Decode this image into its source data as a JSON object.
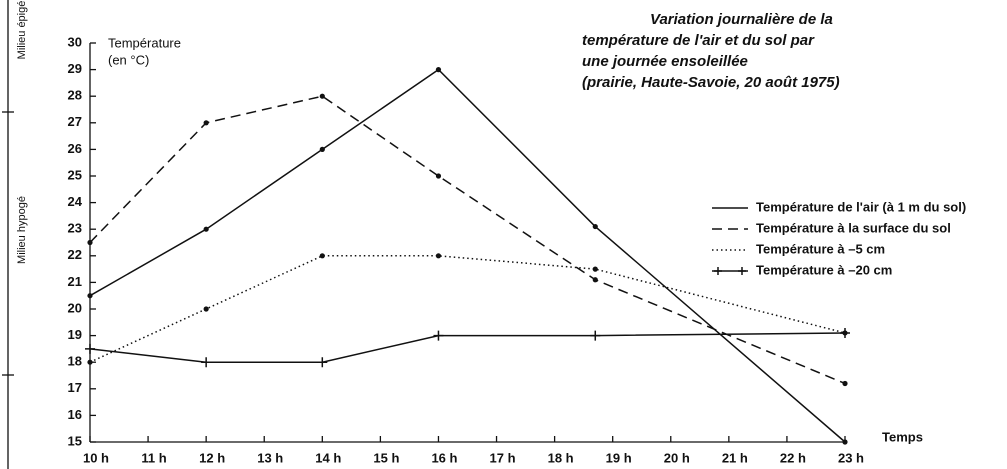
{
  "chart_data": {
    "type": "line",
    "title": [
      "Variation journalière de la",
      "température de l'air et du sol par",
      "une journée ensoleillée",
      "(prairie, Haute-Savoie, 20 août 1975)"
    ],
    "y_label": [
      "Température",
      "(en °C)"
    ],
    "x_label": "Temps",
    "annotations": [
      "Milieu épigé",
      "Milieu hypogé"
    ],
    "x": [
      10,
      12,
      14,
      16,
      18.7,
      23
    ],
    "xlim": [
      10,
      23
    ],
    "xticks": [
      {
        "value": 10,
        "label": "10 h"
      },
      {
        "value": 11,
        "label": "11 h"
      },
      {
        "value": 12,
        "label": "12 h"
      },
      {
        "value": 13,
        "label": "13 h"
      },
      {
        "value": 14,
        "label": "14 h"
      },
      {
        "value": 15,
        "label": "15 h"
      },
      {
        "value": 16,
        "label": "16 h"
      },
      {
        "value": 17,
        "label": "17 h"
      },
      {
        "value": 18,
        "label": "18 h"
      },
      {
        "value": 19,
        "label": "19 h"
      },
      {
        "value": 20,
        "label": "20 h"
      },
      {
        "value": 21,
        "label": "21 h"
      },
      {
        "value": 22,
        "label": "22 h"
      },
      {
        "value": 23,
        "label": "23 h"
      }
    ],
    "ylim": [
      15,
      30
    ],
    "yticks": [
      15,
      16,
      17,
      18,
      19,
      20,
      21,
      22,
      23,
      24,
      25,
      26,
      27,
      28,
      29,
      30
    ],
    "series": [
      {
        "name": "Température de l'air (à 1 m du sol)",
        "color": "#111111",
        "style": "solid",
        "values": [
          20.5,
          23,
          26,
          29,
          23.1,
          15
        ]
      },
      {
        "name": "Température à la surface du sol",
        "color": "#111111",
        "style": "dashed",
        "values": [
          22.5,
          27,
          28,
          25,
          21.1,
          17.2
        ]
      },
      {
        "name": "Température à –5 cm",
        "color": "#111111",
        "style": "dotted",
        "values": [
          18,
          20,
          22,
          22,
          21.5,
          19.1
        ]
      },
      {
        "name": "Température à –20 cm",
        "color": "#111111",
        "style": "plus",
        "values": [
          18.5,
          18,
          18,
          19,
          19,
          19.1
        ]
      }
    ]
  }
}
